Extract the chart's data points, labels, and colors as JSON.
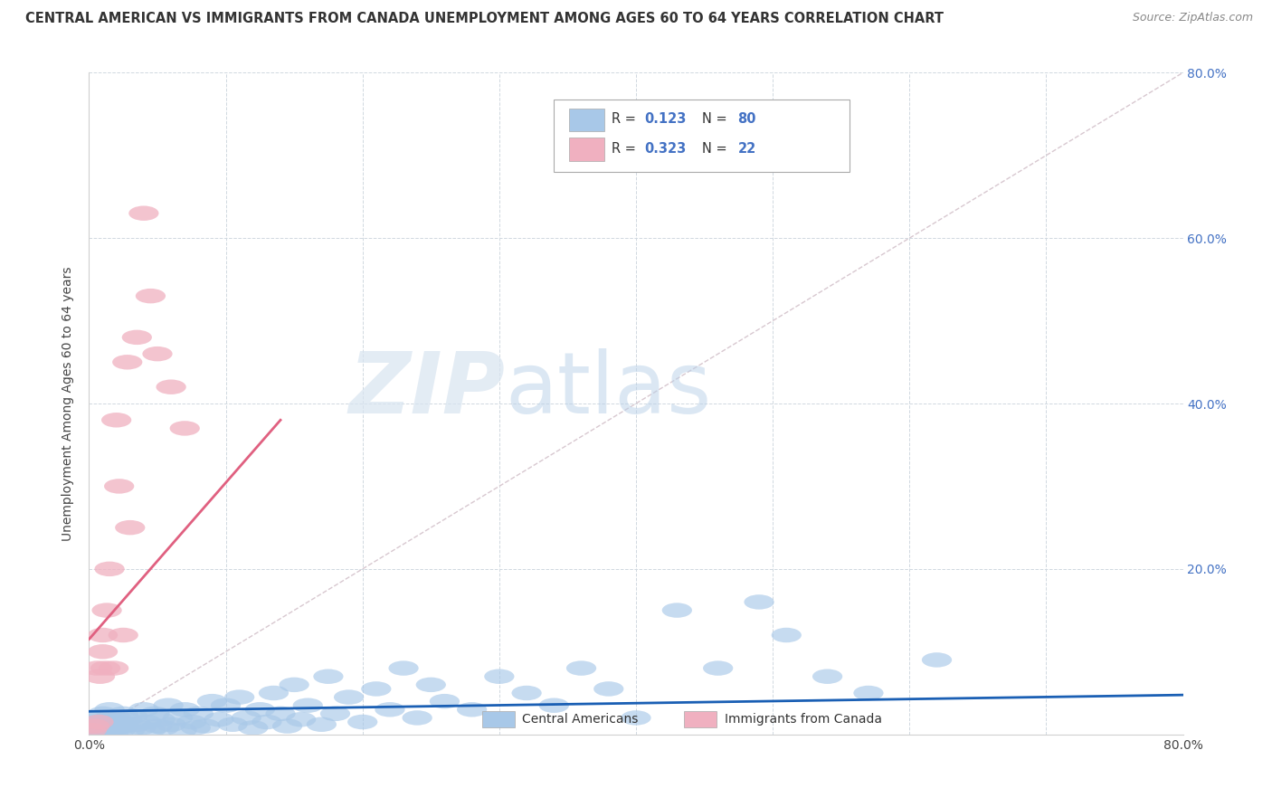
{
  "title": "CENTRAL AMERICAN VS IMMIGRANTS FROM CANADA UNEMPLOYMENT AMONG AGES 60 TO 64 YEARS CORRELATION CHART",
  "source": "Source: ZipAtlas.com",
  "ylabel": "Unemployment Among Ages 60 to 64 years",
  "xlim": [
    0.0,
    0.8
  ],
  "ylim": [
    0.0,
    0.8
  ],
  "xticks": [
    0.0,
    0.1,
    0.2,
    0.3,
    0.4,
    0.5,
    0.6,
    0.7,
    0.8
  ],
  "yticks": [
    0.0,
    0.2,
    0.4,
    0.6,
    0.8
  ],
  "blue_color": "#a8c8e8",
  "pink_color": "#f0b0c0",
  "blue_line_color": "#1a5fb4",
  "pink_line_color": "#e06080",
  "diagonal_color": "#c8d0dc",
  "watermark_zip": "ZIP",
  "watermark_atlas": "atlas",
  "legend_r1_val": "0.123",
  "legend_n1_val": "80",
  "legend_r2_val": "0.323",
  "legend_n2_val": "22",
  "blue_R": 0.123,
  "pink_R": 0.323,
  "blue_scatter_x": [
    0.002,
    0.003,
    0.005,
    0.007,
    0.008,
    0.01,
    0.01,
    0.012,
    0.013,
    0.015,
    0.015,
    0.018,
    0.018,
    0.02,
    0.02,
    0.022,
    0.023,
    0.025,
    0.025,
    0.028,
    0.03,
    0.032,
    0.035,
    0.038,
    0.04,
    0.042,
    0.045,
    0.048,
    0.05,
    0.052,
    0.055,
    0.058,
    0.06,
    0.065,
    0.068,
    0.07,
    0.075,
    0.078,
    0.08,
    0.085,
    0.09,
    0.095,
    0.1,
    0.105,
    0.11,
    0.115,
    0.12,
    0.125,
    0.13,
    0.135,
    0.14,
    0.145,
    0.15,
    0.155,
    0.16,
    0.17,
    0.175,
    0.18,
    0.19,
    0.2,
    0.21,
    0.22,
    0.23,
    0.24,
    0.25,
    0.26,
    0.28,
    0.3,
    0.32,
    0.34,
    0.36,
    0.38,
    0.4,
    0.43,
    0.46,
    0.49,
    0.51,
    0.54,
    0.57,
    0.62
  ],
  "blue_scatter_y": [
    0.02,
    0.005,
    0.008,
    0.015,
    0.003,
    0.01,
    0.025,
    0.007,
    0.018,
    0.005,
    0.03,
    0.012,
    0.002,
    0.02,
    0.008,
    0.015,
    0.005,
    0.025,
    0.01,
    0.018,
    0.005,
    0.022,
    0.012,
    0.008,
    0.03,
    0.015,
    0.005,
    0.025,
    0.01,
    0.018,
    0.008,
    0.035,
    0.012,
    0.02,
    0.005,
    0.03,
    0.015,
    0.008,
    0.025,
    0.01,
    0.04,
    0.018,
    0.035,
    0.012,
    0.045,
    0.02,
    0.008,
    0.03,
    0.015,
    0.05,
    0.025,
    0.01,
    0.06,
    0.018,
    0.035,
    0.012,
    0.07,
    0.025,
    0.045,
    0.015,
    0.055,
    0.03,
    0.08,
    0.02,
    0.06,
    0.04,
    0.03,
    0.07,
    0.05,
    0.035,
    0.08,
    0.055,
    0.02,
    0.15,
    0.08,
    0.16,
    0.12,
    0.07,
    0.05,
    0.09
  ],
  "pink_scatter_x": [
    0.002,
    0.004,
    0.006,
    0.007,
    0.008,
    0.01,
    0.01,
    0.012,
    0.013,
    0.015,
    0.018,
    0.02,
    0.022,
    0.025,
    0.028,
    0.03,
    0.035,
    0.04,
    0.045,
    0.05,
    0.06,
    0.07
  ],
  "pink_scatter_y": [
    0.005,
    0.01,
    0.08,
    0.015,
    0.07,
    0.1,
    0.12,
    0.08,
    0.15,
    0.2,
    0.08,
    0.38,
    0.3,
    0.12,
    0.45,
    0.25,
    0.48,
    0.63,
    0.53,
    0.46,
    0.42,
    0.37
  ],
  "pink_line_x0": 0.0,
  "pink_line_y0": 0.115,
  "pink_line_x1": 0.14,
  "pink_line_y1": 0.38
}
